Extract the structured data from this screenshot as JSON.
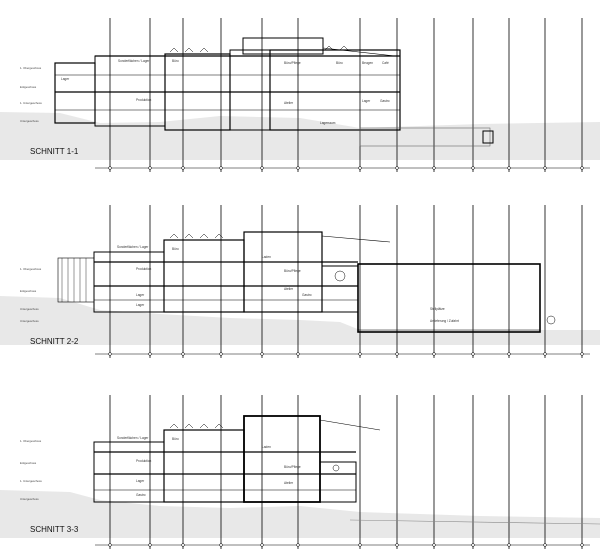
{
  "sheet": {
    "sections": [
      {
        "id": "s1",
        "title": "SCHNITT 1-1",
        "room_labels": [
          "Sonderflächen / Lager",
          "Büro",
          "Büro/Pflege",
          "Büro",
          "Beugen",
          "Café",
          "Produktion",
          "Lager",
          "Lager",
          "Lagerraum",
          "Atelier",
          "Gastro"
        ],
        "level_labels": [
          "1. Obergeschoss",
          "Erdgeschoss",
          "1. Untergeschoss",
          "Untergeschoss"
        ]
      },
      {
        "id": "s2",
        "title": "SCHNITT 2-2",
        "room_labels": [
          "Sonderflächen / Lager",
          "Büro",
          "Produktion",
          "Büro/Pflege",
          "Lager",
          "Atelier",
          "Laden",
          "Gastro",
          "Lager",
          "Stellplätze",
          "Anlieferung / Zufahrt"
        ],
        "level_labels": [
          "1. Obergeschoss",
          "Erdgeschoss",
          "Untergeschoss",
          "Untergeschoss"
        ]
      },
      {
        "id": "s3",
        "title": "SCHNITT 3-3",
        "room_labels": [
          "Sonderflächen / Lager",
          "Büro",
          "Produktion",
          "Büro/Pflege",
          "Lager",
          "Atelier",
          "Laden",
          "Gastro"
        ],
        "level_labels": [
          "1. Obergeschoss",
          "Erdgeschoss",
          "1. Untergeschoss",
          "Untergeschoss"
        ]
      }
    ],
    "grid_marks": [
      "A",
      "B",
      "C",
      "D",
      "E",
      "F",
      "G",
      "H",
      "I",
      "J",
      "K",
      "L",
      "M",
      "N",
      "O"
    ]
  }
}
